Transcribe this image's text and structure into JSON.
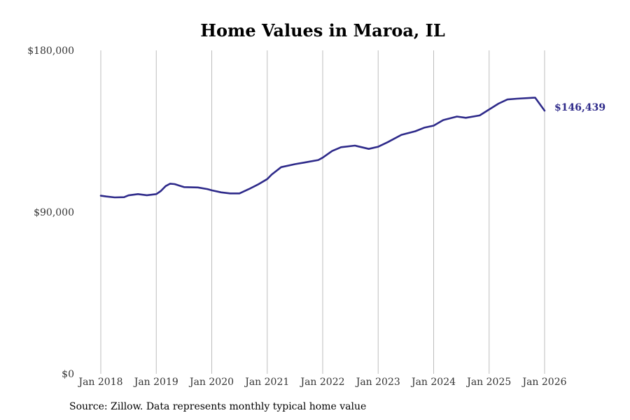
{
  "chart_data": {
    "type": "line",
    "title": "Home Values in Maroa, IL",
    "xlabel": "",
    "ylabel": "",
    "grid": "vertical",
    "x_range": [
      2018.0,
      2026.0
    ],
    "ylim": [
      0,
      180000
    ],
    "yticks": [
      {
        "value": 0,
        "label": "$0"
      },
      {
        "value": 90000,
        "label": "$90,000"
      },
      {
        "value": 180000,
        "label": "$180,000"
      }
    ],
    "xticks": [
      {
        "value": 2018,
        "label": "Jan 2018"
      },
      {
        "value": 2019,
        "label": "Jan 2019"
      },
      {
        "value": 2020,
        "label": "Jan 2020"
      },
      {
        "value": 2021,
        "label": "Jan 2021"
      },
      {
        "value": 2022,
        "label": "Jan 2022"
      },
      {
        "value": 2023,
        "label": "Jan 2023"
      },
      {
        "value": 2024,
        "label": "Jan 2024"
      },
      {
        "value": 2025,
        "label": "Jan 2025"
      },
      {
        "value": 2026,
        "label": "Jan 2026"
      }
    ],
    "series": [
      {
        "name": "Typical home value",
        "color": "#2e2a8a",
        "points": [
          [
            2018.0,
            99100
          ],
          [
            2018.1,
            98700
          ],
          [
            2018.25,
            98200
          ],
          [
            2018.42,
            98300
          ],
          [
            2018.5,
            99300
          ],
          [
            2018.67,
            100000
          ],
          [
            2018.83,
            99400
          ],
          [
            2019.0,
            100000
          ],
          [
            2019.08,
            101700
          ],
          [
            2019.17,
            104500
          ],
          [
            2019.25,
            105800
          ],
          [
            2019.33,
            105600
          ],
          [
            2019.5,
            103900
          ],
          [
            2019.75,
            103700
          ],
          [
            2019.92,
            102800
          ],
          [
            2020.0,
            102100
          ],
          [
            2020.17,
            101000
          ],
          [
            2020.33,
            100400
          ],
          [
            2020.5,
            100400
          ],
          [
            2020.67,
            102800
          ],
          [
            2020.83,
            105300
          ],
          [
            2021.0,
            108400
          ],
          [
            2021.08,
            110900
          ],
          [
            2021.25,
            115000
          ],
          [
            2021.5,
            116700
          ],
          [
            2021.67,
            117600
          ],
          [
            2021.92,
            119000
          ],
          [
            2022.0,
            120300
          ],
          [
            2022.17,
            124000
          ],
          [
            2022.33,
            126100
          ],
          [
            2022.58,
            127000
          ],
          [
            2022.83,
            125200
          ],
          [
            2023.0,
            126400
          ],
          [
            2023.17,
            128900
          ],
          [
            2023.42,
            133000
          ],
          [
            2023.67,
            135000
          ],
          [
            2023.83,
            137000
          ],
          [
            2024.0,
            138100
          ],
          [
            2024.17,
            141200
          ],
          [
            2024.42,
            143200
          ],
          [
            2024.58,
            142500
          ],
          [
            2024.83,
            143800
          ],
          [
            2025.0,
            147100
          ],
          [
            2025.17,
            150400
          ],
          [
            2025.33,
            152700
          ],
          [
            2025.5,
            153100
          ],
          [
            2025.83,
            153700
          ],
          [
            2026.0,
            146439
          ]
        ],
        "end_label": "$146,439"
      }
    ]
  },
  "source_note": "Source: Zillow. Data represents monthly typical home value"
}
